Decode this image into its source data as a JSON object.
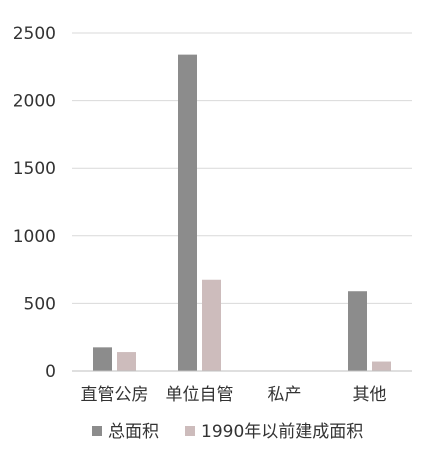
{
  "chart_data": {
    "type": "bar",
    "categories": [
      "直管公房",
      "单位自管",
      "私产",
      "其他"
    ],
    "series": [
      {
        "name": "总面积",
        "values": [
          175,
          2340,
          0,
          590
        ],
        "color": "#8c8c8c"
      },
      {
        "name": "1990年以前建成面积",
        "values": [
          140,
          675,
          0,
          70
        ],
        "color": "#cdbcbc"
      }
    ],
    "ylim": [
      0,
      2500
    ],
    "yticks": [
      "0",
      "500",
      "1000",
      "1500",
      "2000",
      "2500"
    ],
    "grid": true,
    "legend_position": "bottom"
  }
}
